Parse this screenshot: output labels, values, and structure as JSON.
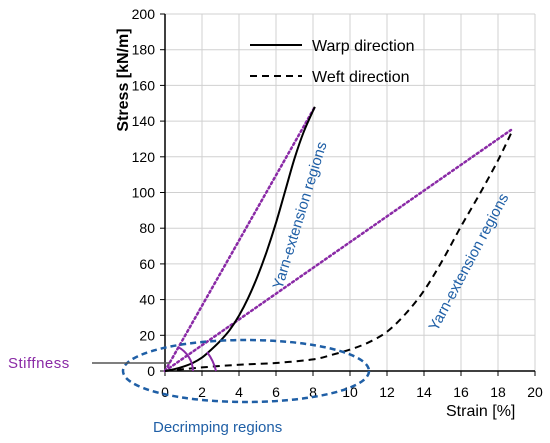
{
  "chart_data": {
    "type": "line",
    "xlabel": "Strain [%]",
    "ylabel": "Stress [kN/m]",
    "xlim": [
      0,
      20
    ],
    "ylim": [
      0,
      200
    ],
    "xticks": [
      "0",
      "2",
      "4",
      "6",
      "8",
      "10",
      "12",
      "14",
      "16",
      "18",
      "20"
    ],
    "yticks": [
      "0",
      "20",
      "40",
      "60",
      "80",
      "100",
      "120",
      "140",
      "160",
      "180",
      "200"
    ],
    "grid": true,
    "legend_position": "top-right",
    "series": [
      {
        "name": "Warp direction",
        "style": "solid",
        "color": "#000000",
        "x": [
          0,
          0.5,
          1.0,
          1.5,
          2.0,
          2.5,
          3.0,
          3.5,
          4.0,
          4.5,
          5.0,
          5.5,
          6.0,
          6.5,
          7.0,
          7.5,
          8.1
        ],
        "y": [
          0,
          1.0,
          2.5,
          4.5,
          7.5,
          12,
          17,
          23,
          31,
          41,
          53,
          67,
          83,
          101,
          119,
          134,
          148
        ]
      },
      {
        "name": "Weft direction",
        "style": "dashed",
        "color": "#000000",
        "x": [
          0,
          2,
          4,
          6,
          8,
          9,
          10,
          11,
          12,
          13,
          14,
          15,
          16,
          17,
          18,
          18.7
        ],
        "y": [
          0,
          2,
          3.5,
          4.5,
          6.5,
          9,
          12,
          16,
          22,
          32,
          45,
          62,
          81,
          99,
          118,
          133
        ]
      }
    ],
    "stiffness_lines": [
      {
        "color": "#8a2aa6",
        "x": [
          0,
          8.1
        ],
        "y": [
          0,
          148
        ]
      },
      {
        "color": "#8a2aa6",
        "x": [
          0,
          18.7
        ],
        "y": [
          0,
          135
        ]
      }
    ],
    "annotations": {
      "warp_region": "Yarn-extension  regions",
      "weft_region": "Yarn-extension  regions",
      "decrimping": "Decrimping regions",
      "stiffness": "Stiffness"
    },
    "colors": {
      "annotation_blue": "#1f5fa6",
      "stiffness_purple": "#8a2aa6",
      "grid": "#d0d0d0"
    }
  }
}
